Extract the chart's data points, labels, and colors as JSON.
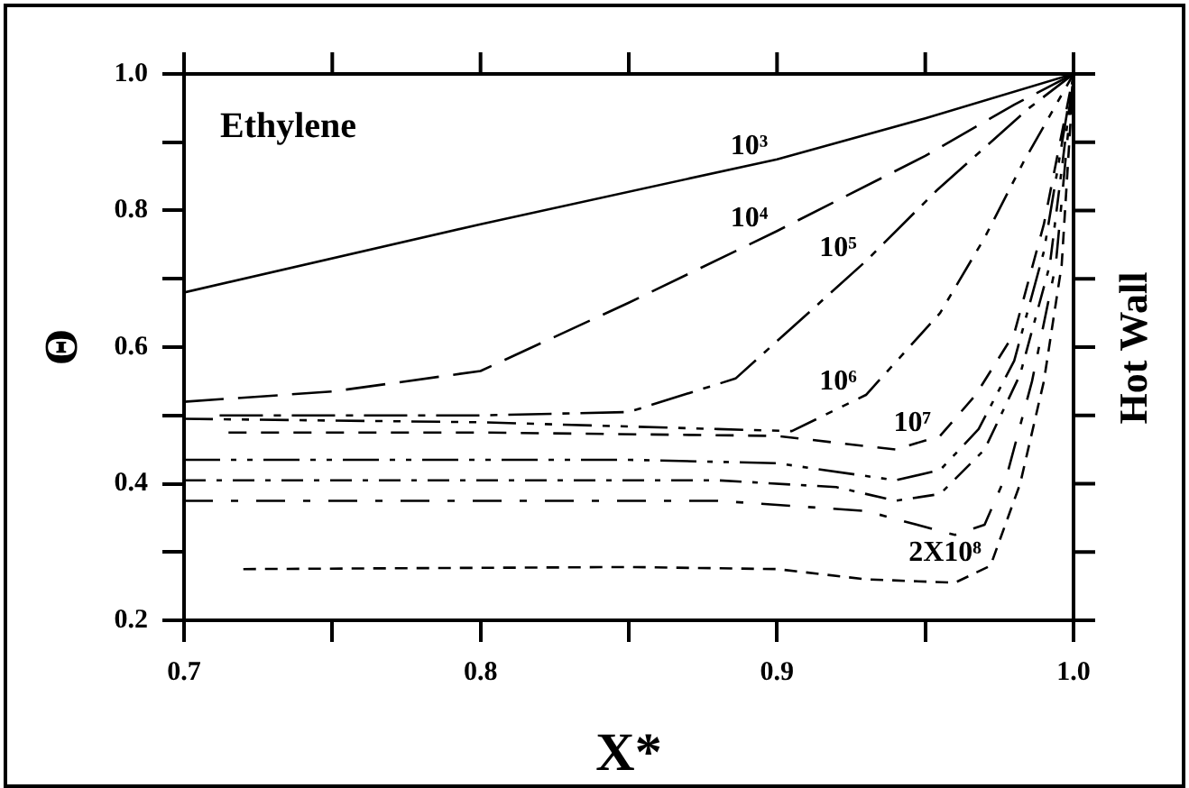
{
  "chart_data": {
    "type": "line",
    "title": "Ethylene",
    "xlabel": "X*",
    "ylabel": "Θ",
    "xlim": [
      0.7,
      1.0
    ],
    "xticks": [
      0.7,
      {
        "value": 0.75,
        "label": null
      },
      0.8,
      {
        "value": 0.85,
        "label": null
      },
      0.9,
      {
        "value": 0.95,
        "label": null
      },
      {
        "value": 1.0,
        "label": "1.0"
      }
    ],
    "ylim": [
      0.2,
      1.0
    ],
    "yticks": [
      0.2,
      {
        "value": 0.3,
        "label": null
      },
      0.4,
      {
        "value": 0.5,
        "label": null
      },
      0.6,
      {
        "value": 0.7,
        "label": null
      },
      0.8,
      {
        "value": 0.9,
        "label": null
      },
      {
        "value": 1.0,
        "label": "1.0"
      }
    ],
    "grid": false,
    "legend": false,
    "marker": "none",
    "series": [
      {
        "name": "10³",
        "color": "#000000",
        "line_style": "solid",
        "x": [
          0.7,
          0.8,
          0.9,
          0.95,
          1.0
        ],
        "values": [
          0.68,
          0.78,
          0.875,
          0.935,
          1.0
        ]
      },
      {
        "name": "10⁴",
        "color": "#000000",
        "line_style": "dashed",
        "x": [
          0.7,
          0.75,
          0.8,
          0.85,
          0.9,
          0.95,
          0.98,
          1.0
        ],
        "values": [
          0.52,
          0.535,
          0.565,
          0.665,
          0.77,
          0.88,
          0.955,
          1.0
        ]
      },
      {
        "name": "10⁵",
        "color": "#000000",
        "line_style": "dashed",
        "x": [
          0.712,
          0.8,
          0.85,
          0.886,
          0.93,
          0.954,
          0.985,
          1.0
        ],
        "values": [
          0.5,
          0.5,
          0.505,
          0.554,
          0.726,
          0.83,
          0.95,
          1.0
        ]
      },
      {
        "name": "10⁶",
        "color": "#000000",
        "line_style": "dashed",
        "x": [
          0.7,
          0.8,
          0.88,
          0.905,
          0.93,
          0.955,
          0.97,
          0.983,
          1.0
        ],
        "values": [
          0.495,
          0.49,
          0.48,
          0.477,
          0.53,
          0.65,
          0.76,
          0.87,
          1.0
        ]
      },
      {
        "name": "10⁷",
        "color": "#000000",
        "line_style": "dashed",
        "x": [
          0.715,
          0.8,
          0.9,
          0.94,
          0.955,
          0.967,
          0.98,
          0.99,
          1.0
        ],
        "values": [
          0.475,
          0.475,
          0.47,
          0.45,
          0.47,
          0.53,
          0.62,
          0.78,
          1.0
        ]
      },
      {
        "color": "#000000",
        "line_style": "dashed",
        "x": [
          0.7,
          0.85,
          0.9,
          0.94,
          0.955,
          0.968,
          0.98,
          0.99,
          1.0
        ],
        "values": [
          0.435,
          0.435,
          0.43,
          0.405,
          0.42,
          0.48,
          0.58,
          0.74,
          1.0
        ]
      },
      {
        "color": "#000000",
        "line_style": "dashed",
        "x": [
          0.7,
          0.88,
          0.92,
          0.94,
          0.955,
          0.97,
          0.982,
          0.992,
          1.0
        ],
        "values": [
          0.405,
          0.405,
          0.395,
          0.375,
          0.385,
          0.45,
          0.56,
          0.72,
          1.0
        ]
      },
      {
        "color": "#000000",
        "line_style": "dashed",
        "x": [
          0.7,
          0.88,
          0.93,
          0.96,
          0.97,
          0.978,
          0.986,
          0.994,
          1.0
        ],
        "values": [
          0.375,
          0.375,
          0.36,
          0.325,
          0.34,
          0.42,
          0.55,
          0.72,
          1.0
        ]
      },
      {
        "name": "2X10⁸",
        "color": "#000000",
        "line_style": "dashed",
        "x": [
          0.72,
          0.85,
          0.9,
          0.93,
          0.96,
          0.972,
          0.982,
          0.99,
          0.996,
          1.0
        ],
        "values": [
          0.275,
          0.278,
          0.275,
          0.26,
          0.255,
          0.28,
          0.4,
          0.55,
          0.72,
          1.0
        ]
      }
    ],
    "annotations": [
      "Hot Wall"
    ]
  }
}
